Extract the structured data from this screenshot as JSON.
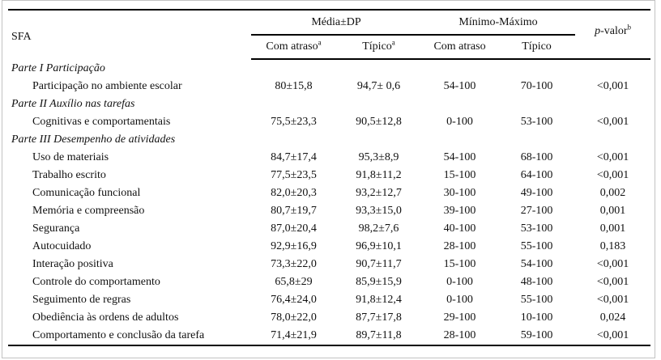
{
  "table": {
    "col1_header": "SFA",
    "group_headers": [
      {
        "label": "Média±DP"
      },
      {
        "label": "Mínimo-Máximo"
      }
    ],
    "sub_headers": [
      {
        "label": "Com atraso",
        "sup": "a"
      },
      {
        "label": "Típico",
        "sup": "a"
      },
      {
        "label": "Com atraso",
        "sup": ""
      },
      {
        "label": "Típico",
        "sup": ""
      }
    ],
    "pvalue_header": {
      "italic": "p",
      "rest": "-valor",
      "sup": "b"
    },
    "rows": [
      {
        "type": "section",
        "label": "Parte I Participação"
      },
      {
        "type": "data",
        "label": "Participação no ambiente escolar",
        "values": [
          "80±15,8",
          "94,7± 0,6",
          "54-100",
          "70-100",
          "<0,001"
        ]
      },
      {
        "type": "section",
        "label": "Parte II Auxílio nas tarefas"
      },
      {
        "type": "data",
        "label": "Cognitivas e comportamentais",
        "values": [
          "75,5±23,3",
          "90,5±12,8",
          "0-100",
          "53-100",
          "<0,001"
        ]
      },
      {
        "type": "section",
        "label": "Parte III Desempenho de atividades"
      },
      {
        "type": "data",
        "label": "Uso de materiais",
        "values": [
          "84,7±17,4",
          "95,3±8,9",
          "54-100",
          "68-100",
          "<0,001"
        ]
      },
      {
        "type": "data",
        "label": "Trabalho escrito",
        "values": [
          "77,5±23,5",
          "91,8±11,2",
          "15-100",
          "64-100",
          "<0,001"
        ]
      },
      {
        "type": "data",
        "label": "Comunicação funcional",
        "values": [
          "82,0±20,3",
          "93,2±12,7",
          "30-100",
          "49-100",
          "0,002"
        ]
      },
      {
        "type": "data",
        "label": "Memória e compreensão",
        "values": [
          "80,7±19,7",
          "93,3±15,0",
          "39-100",
          "27-100",
          "0,001"
        ]
      },
      {
        "type": "data",
        "label": "Segurança",
        "values": [
          "87,0±20,4",
          "98,2±7,6",
          "40-100",
          "53-100",
          "0,001"
        ]
      },
      {
        "type": "data",
        "label": "Autocuidado",
        "values": [
          "92,9±16,9",
          "96,9±10,1",
          "28-100",
          "55-100",
          "0,183"
        ]
      },
      {
        "type": "data",
        "label": "Interação positiva",
        "values": [
          "73,3±22,0",
          "90,7±11,7",
          "15-100",
          "54-100",
          "<0,001"
        ]
      },
      {
        "type": "data",
        "label": "Controle do comportamento",
        "values": [
          "65,8±29",
          "85,9±15,9",
          "0-100",
          "48-100",
          "<0,001"
        ]
      },
      {
        "type": "data",
        "label": "Seguimento de regras",
        "values": [
          "76,4±24,0",
          "91,8±12,4",
          "0-100",
          "55-100",
          "<0,001"
        ]
      },
      {
        "type": "data",
        "label": "Obediência às ordens de adultos",
        "values": [
          "78,0±22,0",
          "87,7±17,8",
          "29-100",
          "10-100",
          "0,024"
        ]
      },
      {
        "type": "data",
        "label": "Comportamento e conclusão da tarefa",
        "values": [
          "71,4±21,9",
          "89,7±11,8",
          "28-100",
          "59-100",
          "<0,001"
        ]
      }
    ]
  }
}
